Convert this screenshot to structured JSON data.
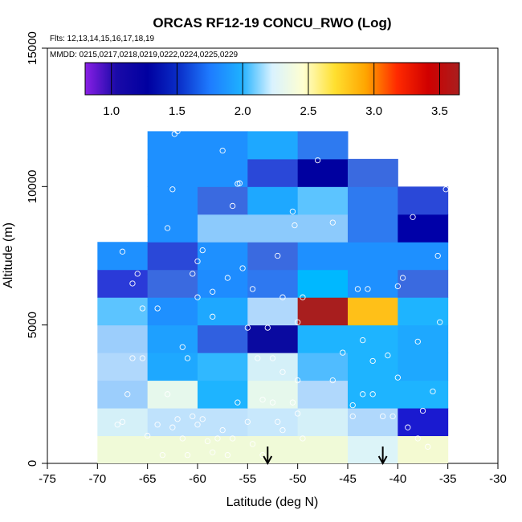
{
  "chart_data": {
    "type": "heatmap",
    "title": "ORCAS RF12-19 CONCU_RWO (Log)",
    "subtitle_flights": "Flts: 12,13,14,15,16,17,18,19",
    "subtitle_dates": "MMDD: 0215,0217,0218,0219,0222,0224,0225,0229",
    "xlabel": "Latitude (deg N)",
    "ylabel": "Altitude (m)",
    "xlim": [
      -75,
      -30
    ],
    "ylim": [
      0,
      15000
    ],
    "x_ticks": [
      -75,
      -70,
      -65,
      -60,
      -55,
      -50,
      -45,
      -40,
      -35,
      -30
    ],
    "x_tick_labels": [
      "-75",
      "-70",
      "-65",
      "-60",
      "-55",
      "-50",
      "-45",
      "-40",
      "-35",
      "-30"
    ],
    "y_ticks": [
      0,
      5000,
      10000,
      15000
    ],
    "y_tick_labels": [
      "0",
      "5000",
      "10000",
      "15000"
    ],
    "colorbar": {
      "range": [
        0.8,
        3.65
      ],
      "ticks": [
        1.0,
        1.5,
        2.0,
        2.5,
        3.0,
        3.5
      ],
      "tick_labels": [
        "1.0",
        "1.5",
        "2.0",
        "2.5",
        "3.0",
        "3.5"
      ],
      "gradient": [
        "#8a1fe6",
        "#1a0aa8",
        "#0000a0",
        "#0a2ec8",
        "#1e7bff",
        "#1eb0ff",
        "#d9f2ff",
        "#ffffd0",
        "#ffe030",
        "#ffa500",
        "#ff2a00",
        "#d00000",
        "#a81e1e"
      ]
    },
    "x_bin_edges": [
      -70,
      -65,
      -60,
      -55,
      -50,
      -45,
      -40,
      -35
    ],
    "y_bin_edges": [
      0,
      1000,
      2000,
      3000,
      4000,
      5000,
      6000,
      7000,
      8000,
      9000,
      10000,
      11000,
      12000
    ],
    "cells": [
      {
        "x0": -70,
        "y0": 0,
        "c": "#f0fad8"
      },
      {
        "x0": -65,
        "y0": 0,
        "c": "#f0fad8"
      },
      {
        "x0": -60,
        "y0": 0,
        "c": "#f0fad8"
      },
      {
        "x0": -55,
        "y0": 0,
        "c": "#f0fad8"
      },
      {
        "x0": -50,
        "y0": 0,
        "c": "#f0fad8"
      },
      {
        "x0": -45,
        "y0": 0,
        "c": "#dcf4f8"
      },
      {
        "x0": -40,
        "y0": 0,
        "c": "#f4fad2"
      },
      {
        "x0": -70,
        "y0": 1000,
        "c": "#d4f0f8"
      },
      {
        "x0": -65,
        "y0": 1000,
        "c": "#bfe2fc"
      },
      {
        "x0": -60,
        "y0": 1000,
        "c": "#bfe2fc"
      },
      {
        "x0": -55,
        "y0": 1000,
        "c": "#c8e8fc"
      },
      {
        "x0": -50,
        "y0": 1000,
        "c": "#d4f0f8"
      },
      {
        "x0": -45,
        "y0": 1000,
        "c": "#b0d8fc"
      },
      {
        "x0": -40,
        "y0": 1000,
        "c": "#1a1ad0"
      },
      {
        "x0": -70,
        "y0": 2000,
        "c": "#9ccefc"
      },
      {
        "x0": -65,
        "y0": 2000,
        "c": "#e6f8ec"
      },
      {
        "x0": -60,
        "y0": 2000,
        "c": "#1eb4ff"
      },
      {
        "x0": -55,
        "y0": 2000,
        "c": "#e6f8ec"
      },
      {
        "x0": -50,
        "y0": 2000,
        "c": "#b0d8fc"
      },
      {
        "x0": -45,
        "y0": 2000,
        "c": "#1eb4ff"
      },
      {
        "x0": -40,
        "y0": 2000,
        "c": "#1eb4ff"
      },
      {
        "x0": -70,
        "y0": 3000,
        "c": "#b0d8fc"
      },
      {
        "x0": -65,
        "y0": 3000,
        "c": "#1ea8ff"
      },
      {
        "x0": -60,
        "y0": 3000,
        "c": "#30b8ff"
      },
      {
        "x0": -55,
        "y0": 3000,
        "c": "#d4f0f8"
      },
      {
        "x0": -50,
        "y0": 3000,
        "c": "#50bcff"
      },
      {
        "x0": -45,
        "y0": 3000,
        "c": "#1eb4ff"
      },
      {
        "x0": -40,
        "y0": 3000,
        "c": "#1ea8ff"
      },
      {
        "x0": -70,
        "y0": 4000,
        "c": "#9ccefc"
      },
      {
        "x0": -65,
        "y0": 4000,
        "c": "#1ea0ff"
      },
      {
        "x0": -60,
        "y0": 4000,
        "c": "#3060e0"
      },
      {
        "x0": -55,
        "y0": 4000,
        "c": "#0a0aa0"
      },
      {
        "x0": -50,
        "y0": 4000,
        "c": "#1eb4ff"
      },
      {
        "x0": -45,
        "y0": 4000,
        "c": "#1eb4ff"
      },
      {
        "x0": -40,
        "y0": 4000,
        "c": "#1ea8ff"
      },
      {
        "x0": -70,
        "y0": 5000,
        "c": "#5cc4ff"
      },
      {
        "x0": -65,
        "y0": 5000,
        "c": "#1e90ff"
      },
      {
        "x0": -60,
        "y0": 5000,
        "c": "#1ea8ff"
      },
      {
        "x0": -55,
        "y0": 5000,
        "c": "#b0d8fc"
      },
      {
        "x0": -50,
        "y0": 5000,
        "c": "#a81e1e"
      },
      {
        "x0": -45,
        "y0": 5000,
        "c": "#ffc018"
      },
      {
        "x0": -40,
        "y0": 5000,
        "c": "#1eb4ff"
      },
      {
        "x0": -70,
        "y0": 6000,
        "c": "#2a3ad8"
      },
      {
        "x0": -65,
        "y0": 6000,
        "c": "#3a6ae0"
      },
      {
        "x0": -60,
        "y0": 6000,
        "c": "#1e8cff"
      },
      {
        "x0": -55,
        "y0": 6000,
        "c": "#2e78f0"
      },
      {
        "x0": -50,
        "y0": 6000,
        "c": "#00b8ff"
      },
      {
        "x0": -45,
        "y0": 6000,
        "c": "#1e90ff"
      },
      {
        "x0": -40,
        "y0": 6000,
        "c": "#3a6ae0"
      },
      {
        "x0": -70,
        "y0": 7000,
        "c": "#1e90ff"
      },
      {
        "x0": -65,
        "y0": 7000,
        "c": "#2a48d8"
      },
      {
        "x0": -60,
        "y0": 7000,
        "c": "#1e90ff"
      },
      {
        "x0": -55,
        "y0": 7000,
        "c": "#3a6ae0"
      },
      {
        "x0": -50,
        "y0": 7000,
        "c": "#1e90ff"
      },
      {
        "x0": -45,
        "y0": 7000,
        "c": "#1e90ff"
      },
      {
        "x0": -40,
        "y0": 7000,
        "c": "#1e90ff"
      },
      {
        "x0": -65,
        "y0": 8000,
        "c": "#1e90ff"
      },
      {
        "x0": -60,
        "y0": 8000,
        "c": "#8ccafc"
      },
      {
        "x0": -55,
        "y0": 8000,
        "c": "#8ccafc"
      },
      {
        "x0": -50,
        "y0": 8000,
        "c": "#8ccafc"
      },
      {
        "x0": -45,
        "y0": 8000,
        "c": "#2e7af0"
      },
      {
        "x0": -40,
        "y0": 8000,
        "c": "#0000a8"
      },
      {
        "x0": -65,
        "y0": 9000,
        "c": "#1e90ff"
      },
      {
        "x0": -60,
        "y0": 9000,
        "c": "#3a6ae0"
      },
      {
        "x0": -55,
        "y0": 9000,
        "c": "#1ea8ff"
      },
      {
        "x0": -50,
        "y0": 9000,
        "c": "#5cc4ff"
      },
      {
        "x0": -45,
        "y0": 9000,
        "c": "#2e7af0"
      },
      {
        "x0": -40,
        "y0": 9000,
        "c": "#2a48d8"
      },
      {
        "x0": -65,
        "y0": 10000,
        "c": "#1e90ff"
      },
      {
        "x0": -60,
        "y0": 10000,
        "c": "#1e90ff"
      },
      {
        "x0": -55,
        "y0": 10000,
        "c": "#2a48d8"
      },
      {
        "x0": -50,
        "y0": 10000,
        "c": "#0000a0"
      },
      {
        "x0": -45,
        "y0": 10000,
        "c": "#3a6ae0"
      },
      {
        "x0": -65,
        "y0": 11000,
        "c": "#1e90ff"
      },
      {
        "x0": -60,
        "y0": 11000,
        "c": "#1e90ff"
      },
      {
        "x0": -55,
        "y0": 11000,
        "c": "#1ea8ff"
      },
      {
        "x0": -50,
        "y0": 11000,
        "c": "#2e7af0"
      }
    ],
    "points": [
      [
        -67.5,
        7650
      ],
      [
        -66.5,
        6500
      ],
      [
        -66.0,
        6850
      ],
      [
        -65.5,
        5600
      ],
      [
        -64.0,
        5600
      ],
      [
        -63.0,
        8500
      ],
      [
        -62.5,
        9900
      ],
      [
        -62.3,
        11900
      ],
      [
        -62.0,
        12000
      ],
      [
        -61.5,
        4200
      ],
      [
        -61.0,
        3800
      ],
      [
        -60.5,
        6850
      ],
      [
        -60.0,
        6000
      ],
      [
        -60.0,
        7300
      ],
      [
        -59.5,
        7700
      ],
      [
        -58.5,
        6200
      ],
      [
        -58.5,
        5300
      ],
      [
        -57.5,
        11300
      ],
      [
        -57.0,
        6700
      ],
      [
        -56.5,
        9300
      ],
      [
        -56.0,
        10100
      ],
      [
        -55.8,
        10120
      ],
      [
        -55.5,
        7050
      ],
      [
        -55.0,
        4900
      ],
      [
        -54.5,
        6300
      ],
      [
        -54.0,
        3800
      ],
      [
        -53.5,
        2300
      ],
      [
        -53.0,
        4900
      ],
      [
        -52.5,
        3800
      ],
      [
        -52.0,
        7500
      ],
      [
        -51.5,
        6000
      ],
      [
        -51.5,
        3300
      ],
      [
        -50.5,
        9100
      ],
      [
        -50.3,
        8600
      ],
      [
        -50.0,
        5100
      ],
      [
        -50.0,
        3000
      ],
      [
        -49.5,
        6000
      ],
      [
        -48.0,
        10950
      ],
      [
        -46.5,
        8700
      ],
      [
        -45.5,
        4000
      ],
      [
        -44.5,
        2100
      ],
      [
        -44.0,
        6300
      ],
      [
        -43.5,
        4450
      ],
      [
        -43.0,
        6300
      ],
      [
        -42.5,
        3700
      ],
      [
        -41.5,
        1700
      ],
      [
        -41.0,
        3900
      ],
      [
        -40.5,
        1700
      ],
      [
        -40.0,
        6400
      ],
      [
        -39.5,
        6700
      ],
      [
        -38.5,
        8900
      ],
      [
        -38.0,
        4400
      ],
      [
        -37.5,
        1900
      ],
      [
        -37.0,
        600
      ],
      [
        -36.5,
        2600
      ],
      [
        -36.0,
        7500
      ],
      [
        -35.8,
        5100
      ],
      [
        -35.2,
        9900
      ],
      [
        -68.0,
        1400
      ],
      [
        -67.5,
        1500
      ],
      [
        -67.0,
        2500
      ],
      [
        -66.5,
        3800
      ],
      [
        -65.5,
        3800
      ],
      [
        -65.0,
        1000
      ],
      [
        -64.0,
        1400
      ],
      [
        -63.5,
        300
      ],
      [
        -63.0,
        2500
      ],
      [
        -62.5,
        1300
      ],
      [
        -62.0,
        1600
      ],
      [
        -61.5,
        900
      ],
      [
        -61.0,
        300
      ],
      [
        -60.5,
        1700
      ],
      [
        -60.0,
        1400
      ],
      [
        -59.5,
        1600
      ],
      [
        -59.0,
        800
      ],
      [
        -58.5,
        400
      ],
      [
        -58.0,
        900
      ],
      [
        -57.5,
        1200
      ],
      [
        -57.0,
        300
      ],
      [
        -56.5,
        900
      ],
      [
        -56.0,
        2200
      ],
      [
        -55.0,
        1500
      ],
      [
        -54.5,
        700
      ],
      [
        -53.5,
        300
      ],
      [
        -52.5,
        2200
      ],
      [
        -52.0,
        1500
      ],
      [
        -51.5,
        1200
      ],
      [
        -50.5,
        2200
      ],
      [
        -50.0,
        1800
      ],
      [
        -49.5,
        900
      ],
      [
        -46.5,
        3000
      ],
      [
        -44.5,
        1700
      ],
      [
        -43.5,
        2500
      ],
      [
        -42.5,
        2500
      ],
      [
        -40.0,
        3100
      ],
      [
        -39.0,
        1300
      ],
      [
        -38.0,
        900
      ]
    ],
    "arrows_at_latitude": [
      -53,
      -41.5
    ]
  }
}
